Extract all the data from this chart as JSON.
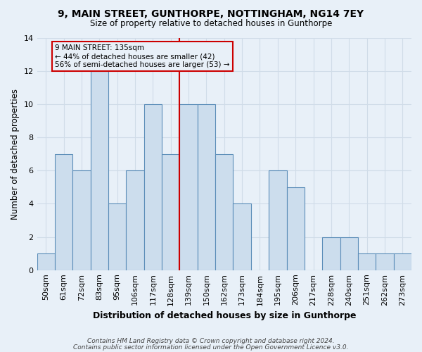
{
  "title1": "9, MAIN STREET, GUNTHORPE, NOTTINGHAM, NG14 7EY",
  "title2": "Size of property relative to detached houses in Gunthorpe",
  "xlabel": "Distribution of detached houses by size in Gunthorpe",
  "ylabel": "Number of detached properties",
  "categories": [
    "50sqm",
    "61sqm",
    "72sqm",
    "83sqm",
    "95sqm",
    "106sqm",
    "117sqm",
    "128sqm",
    "139sqm",
    "150sqm",
    "162sqm",
    "173sqm",
    "184sqm",
    "195sqm",
    "206sqm",
    "217sqm",
    "228sqm",
    "240sqm",
    "251sqm",
    "262sqm",
    "273sqm"
  ],
  "values": [
    1,
    7,
    6,
    12,
    4,
    6,
    10,
    7,
    10,
    10,
    7,
    4,
    0,
    6,
    5,
    0,
    2,
    2,
    1,
    1,
    1
  ],
  "bar_color": "#ccdded",
  "bar_edge_color": "#5b8db8",
  "ref_line_x": 8,
  "ref_line_color": "#cc0000",
  "annotation_text": "9 MAIN STREET: 135sqm\n← 44% of detached houses are smaller (42)\n56% of semi-detached houses are larger (53) →",
  "annotation_box_edge_color": "#cc0000",
  "ylim": [
    0,
    14
  ],
  "yticks": [
    0,
    2,
    4,
    6,
    8,
    10,
    12,
    14
  ],
  "footer1": "Contains HM Land Registry data © Crown copyright and database right 2024.",
  "footer2": "Contains public sector information licensed under the Open Government Licence v3.0.",
  "background_color": "#e8f0f8",
  "grid_color": "#d0dce8"
}
